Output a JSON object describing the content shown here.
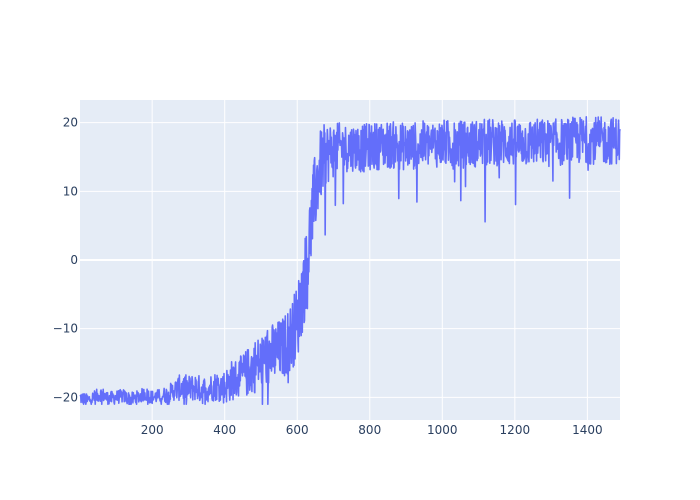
{
  "chart_data": {
    "type": "line",
    "title": "",
    "xlabel": "",
    "ylabel": "",
    "xlim": [
      1,
      1490
    ],
    "ylim": [
      -23.3,
      23.3
    ],
    "xticks": [
      200,
      400,
      600,
      800,
      1000,
      1200,
      1400
    ],
    "yticks": [
      -20,
      -10,
      0,
      10,
      20
    ],
    "xtick_labels": [
      "200",
      "400",
      "600",
      "800",
      "1000",
      "1200",
      "1400"
    ],
    "ytick_labels": [
      "−20",
      "−10",
      "0",
      "10",
      "20"
    ],
    "grid": true,
    "legend": "none",
    "colors": {
      "plot_bg": "#e5ecf6",
      "grid": "#ffffff",
      "line": "#636efa",
      "text": "#2a3f5f"
    },
    "series": [
      {
        "x": [
          1,
          20,
          40,
          60,
          80,
          100,
          120,
          140,
          160,
          180,
          200,
          220,
          240,
          260,
          280,
          300,
          320,
          340,
          360,
          380,
          400,
          420,
          440,
          460,
          480,
          500,
          520,
          540,
          560,
          580,
          600,
          610,
          620,
          630,
          640,
          650,
          660,
          670,
          680,
          700,
          720,
          740,
          760,
          780,
          800,
          850,
          900,
          950,
          1000,
          1050,
          1100,
          1150,
          1200,
          1250,
          1300,
          1350,
          1400,
          1450,
          1490
        ],
        "y": [
          -20,
          -20.5,
          -20,
          -19.5,
          -20.2,
          -20,
          -19.8,
          -20.3,
          -20,
          -19.5,
          -20,
          -19.8,
          -19.6,
          -19,
          -18.5,
          -18.8,
          -18.5,
          -19,
          -18.6,
          -18.3,
          -18.5,
          -17.5,
          -17.2,
          -16.5,
          -15.5,
          -14.8,
          -14,
          -13.5,
          -12.8,
          -11.5,
          -9,
          -6,
          -3,
          1,
          6,
          10,
          13,
          14.5,
          15.5,
          16,
          16.5,
          16.3,
          16.5,
          16.2,
          16.5,
          16.8,
          16.5,
          16.8,
          17,
          16.8,
          17,
          17.2,
          17,
          17.2,
          17,
          17.3,
          17.5,
          17.3,
          17.5
        ],
        "spread": [
          1,
          1,
          1,
          1,
          1,
          1,
          1,
          1,
          1,
          1,
          1,
          1,
          1.2,
          1.5,
          2,
          2,
          2,
          2,
          2,
          2.2,
          2.5,
          3,
          3,
          3.5,
          4,
          4,
          4.5,
          4.5,
          4.5,
          5,
          5.5,
          6,
          6,
          6,
          6,
          6,
          5.5,
          5,
          4.5,
          4,
          3.5,
          3.5,
          3.5,
          3.5,
          3.5,
          3.5,
          3.5,
          3.5,
          3.5,
          3.5,
          3.5,
          3.5,
          3.5,
          3.5,
          3.5,
          3.5,
          3.5,
          3.5,
          3.5
        ]
      }
    ]
  }
}
